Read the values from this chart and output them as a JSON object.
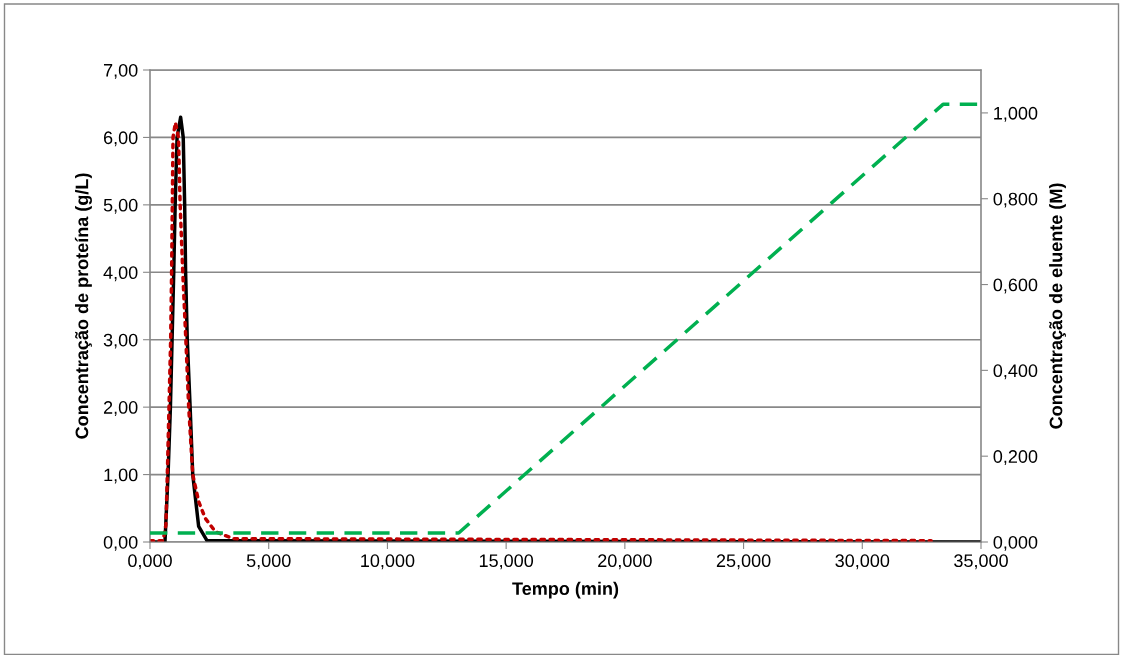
{
  "chart_data": {
    "type": "line",
    "xlabel": "Tempo (min)",
    "ylabel": "Concentração de proteína (g/L)",
    "y2label": "Concentração de eluente (M)",
    "xlim": [
      0,
      35
    ],
    "xticks": [
      {
        "value": 0,
        "label": "0,000"
      },
      {
        "value": 5,
        "label": "5,000"
      },
      {
        "value": 10,
        "label": "10,000"
      },
      {
        "value": 15,
        "label": "15,000"
      },
      {
        "value": 20,
        "label": "20,000"
      },
      {
        "value": 25,
        "label": "25,000"
      },
      {
        "value": 30,
        "label": "30,000"
      },
      {
        "value": 35,
        "label": "35,000"
      }
    ],
    "ylim": [
      0,
      7
    ],
    "yticks": [
      {
        "value": 0,
        "label": "0,00"
      },
      {
        "value": 1,
        "label": "1,00"
      },
      {
        "value": 2,
        "label": "2,00"
      },
      {
        "value": 3,
        "label": "3,00"
      },
      {
        "value": 4,
        "label": "4,00"
      },
      {
        "value": 5,
        "label": "5,00"
      },
      {
        "value": 6,
        "label": "6,00"
      },
      {
        "value": 7,
        "label": "7,00"
      }
    ],
    "y2lim": [
      0,
      1.1
    ],
    "y2ticks": [
      {
        "value": 0,
        "label": "0,000"
      },
      {
        "value": 0.2,
        "label": "0,200"
      },
      {
        "value": 0.4,
        "label": "0,400"
      },
      {
        "value": 0.6,
        "label": "0,600"
      },
      {
        "value": 0.8,
        "label": "0,800"
      },
      {
        "value": 1.0,
        "label": "1,000"
      }
    ],
    "grid": "y",
    "legend": false,
    "series": [
      {
        "color": "#000000",
        "line_style": "solid",
        "x": [
          0,
          0.63,
          0.76,
          0.86,
          0.93,
          1.0,
          1.06,
          1.14,
          1.29,
          1.4,
          1.46,
          1.5,
          1.57,
          1.69,
          1.8,
          2.05,
          2.4,
          35
        ],
        "values": [
          0,
          0,
          1.0,
          2.0,
          3.0,
          4.0,
          5.0,
          6.0,
          6.3,
          6.0,
          5.0,
          4.0,
          3.0,
          2.0,
          1.0,
          0.23,
          0.02,
          0
        ]
      },
      {
        "color": "#c00000",
        "line_style": "dotted",
        "x": [
          0,
          0.55,
          0.67,
          0.73,
          0.8,
          0.87,
          0.91,
          0.94,
          0.97,
          1.07,
          1.2,
          1.27,
          1.38,
          1.51,
          1.63,
          1.8,
          2.05,
          2.33,
          2.76,
          3.5,
          32.9
        ],
        "values": [
          0.02,
          0.02,
          0.25,
          1.0,
          2.0,
          3.0,
          4.0,
          5.0,
          6.0,
          6.22,
          6.0,
          5.0,
          4.0,
          3.0,
          2.0,
          1.0,
          0.6,
          0.35,
          0.15,
          0.05,
          0.02
        ]
      },
      {
        "color": "#00b050",
        "line_style": "dashed",
        "axis": "y2",
        "x": [
          0,
          13.0,
          33.4,
          35
        ],
        "values": [
          0.021,
          0.021,
          1.02,
          1.02
        ]
      }
    ]
  }
}
